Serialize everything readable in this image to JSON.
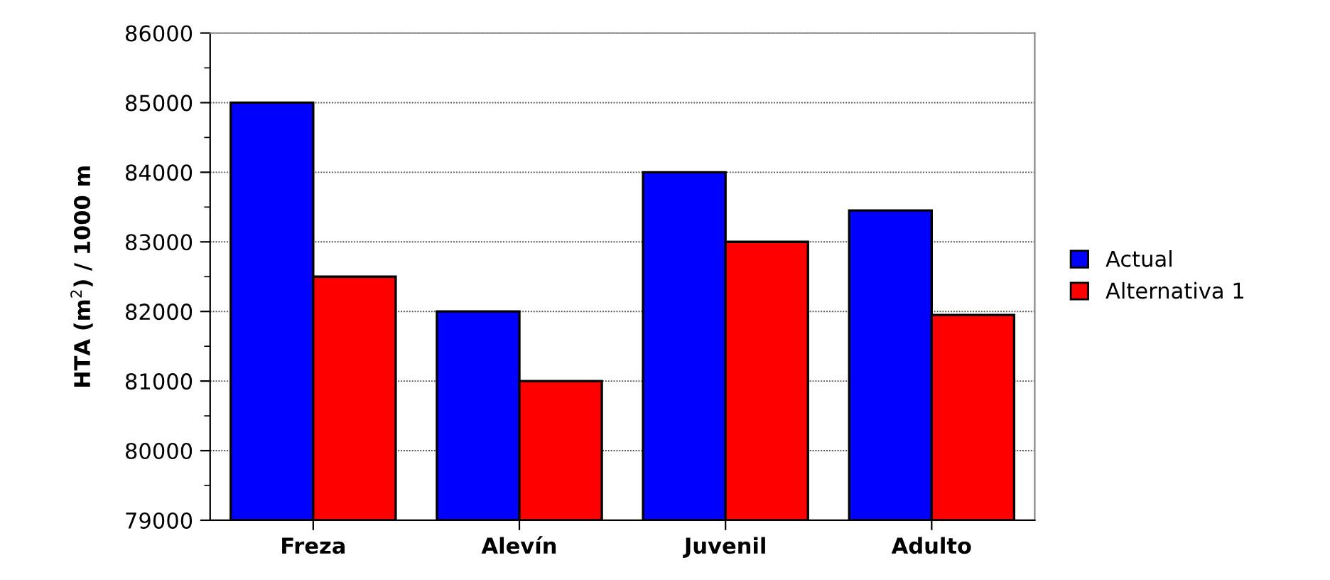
{
  "chart_data": {
    "type": "bar",
    "ylabel": "HTA (m$^{2}$) / 1000 m",
    "categories": [
      "Freza",
      "Alevín",
      "Juvenil",
      "Adulto"
    ],
    "series": [
      {
        "name": "Actual",
        "color": "#0000ff",
        "values": [
          85000,
          82000,
          84000,
          83450
        ]
      },
      {
        "name": "Alternativa 1",
        "color": "#ff0000",
        "values": [
          82500,
          81000,
          83000,
          81950
        ]
      }
    ],
    "ylim": [
      79000,
      86000
    ],
    "yticks": [
      79000,
      {
        "value": 79500,
        "label": null
      },
      80000,
      {
        "value": 80500,
        "label": null
      },
      81000,
      {
        "value": 81500,
        "label": null
      },
      82000,
      {
        "value": 82500,
        "label": null
      },
      83000,
      {
        "value": 83500,
        "label": null
      },
      84000,
      {
        "value": 84500,
        "label": null
      },
      85000,
      {
        "value": 85500,
        "label": null
      },
      86000
    ],
    "grid": "y",
    "legend": "right"
  }
}
